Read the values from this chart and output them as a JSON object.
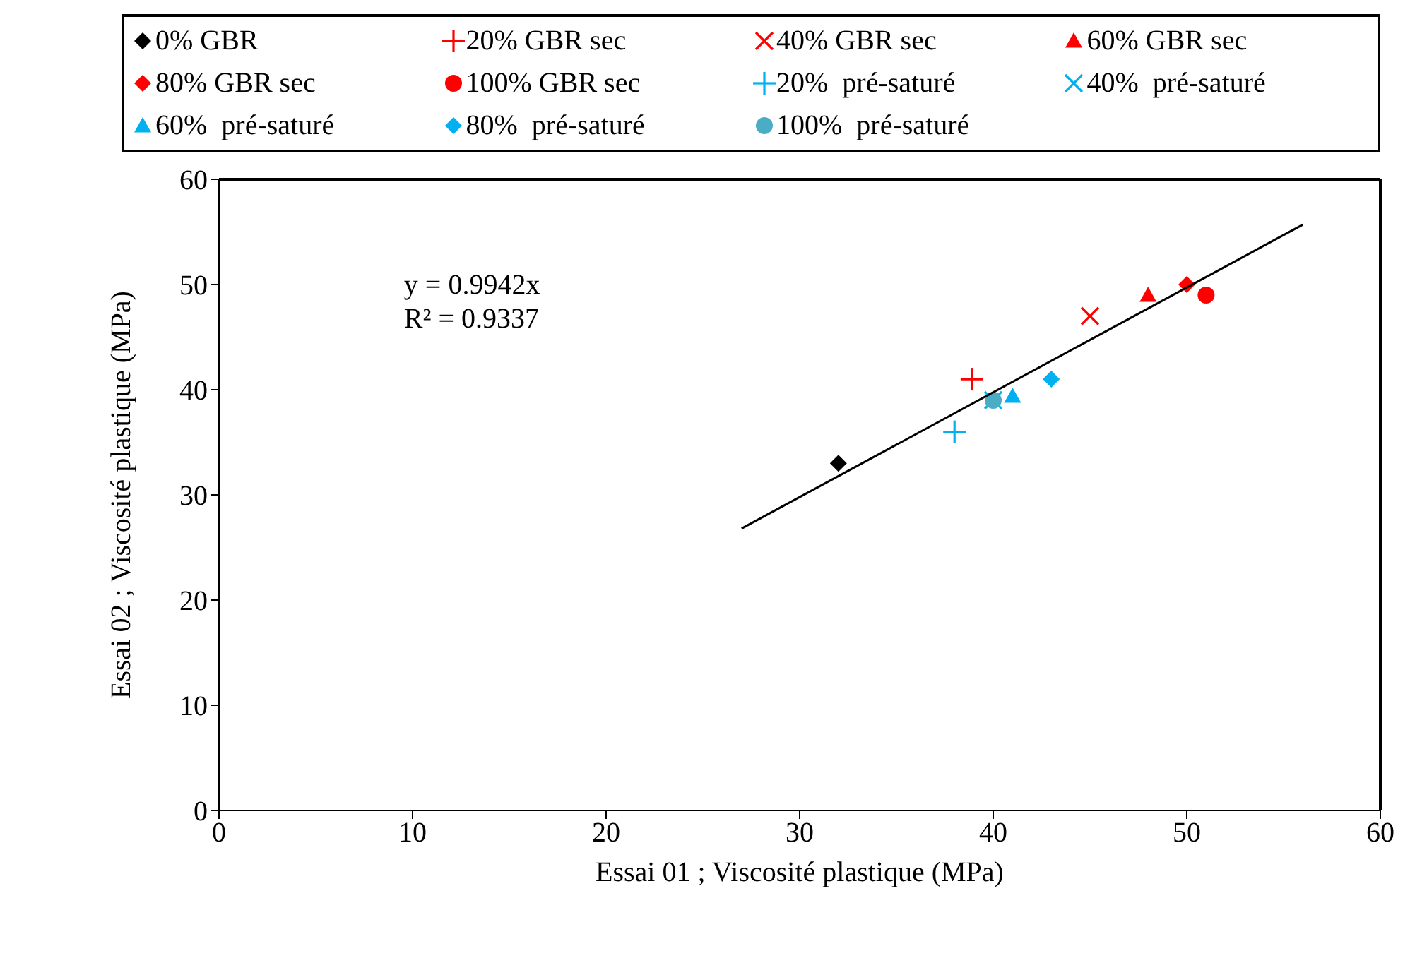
{
  "chart_data": {
    "type": "scatter",
    "xlabel": "Essai 01 ; Viscosité plastique (MPa)",
    "ylabel": "Essai 02  ; Viscosité plastique (MPa)",
    "xlim": [
      0,
      60
    ],
    "xticks": [
      0,
      10,
      20,
      30,
      40,
      50,
      60
    ],
    "ylim": [
      0,
      60
    ],
    "yticks": [
      0,
      10,
      20,
      30,
      40,
      50,
      60
    ],
    "legend": "top",
    "annotations": [
      "y = 0.9942x",
      "R² = 0.9337"
    ],
    "series": [
      {
        "name": "0% GBR",
        "color": "#000000",
        "marker": "diamond",
        "x": [
          32
        ],
        "values": [
          33
        ]
      },
      {
        "name": "20% GBR sec",
        "color": "#ff0000",
        "marker": "plus",
        "x": [
          38.9
        ],
        "values": [
          41
        ]
      },
      {
        "name": "40% GBR sec",
        "color": "#ff0000",
        "marker": "cross",
        "x": [
          45
        ],
        "values": [
          47
        ]
      },
      {
        "name": "60% GBR sec",
        "color": "#ff0000",
        "marker": "triangle",
        "x": [
          48
        ],
        "values": [
          49
        ]
      },
      {
        "name": "80% GBR sec",
        "color": "#ff0000",
        "marker": "diamond",
        "x": [
          50
        ],
        "values": [
          50
        ]
      },
      {
        "name": "100% GBR sec",
        "color": "#ff0000",
        "marker": "circle",
        "x": [
          51
        ],
        "values": [
          49
        ]
      },
      {
        "name": "20%  pré-saturé",
        "color": "#00b0f0",
        "marker": "plus",
        "x": [
          38
        ],
        "values": [
          36
        ]
      },
      {
        "name": "40%  pré-saturé",
        "color": "#00b0f0",
        "marker": "cross",
        "x": [
          40
        ],
        "values": [
          39
        ]
      },
      {
        "name": "60%  pré-saturé",
        "color": "#00b0f0",
        "marker": "triangle",
        "x": [
          41
        ],
        "values": [
          39.4
        ]
      },
      {
        "name": "80%  pré-saturé",
        "color": "#00b0f0",
        "marker": "diamond",
        "x": [
          43
        ],
        "values": [
          41
        ]
      },
      {
        "name": "100%  pré-saturé",
        "color": "#4bacc6",
        "marker": "circle",
        "x": [
          40
        ],
        "values": [
          39
        ]
      },
      {
        "type": "line",
        "color": "#000000",
        "marker": "none",
        "x": [
          27,
          56
        ],
        "values": [
          26.8,
          55.7
        ]
      }
    ]
  }
}
